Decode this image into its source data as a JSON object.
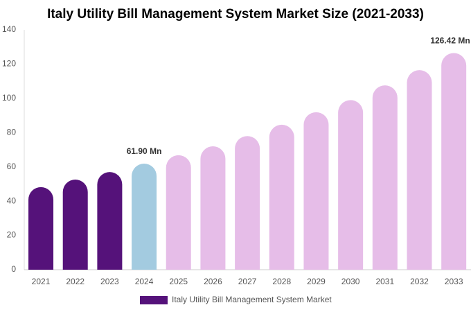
{
  "chart_data": {
    "type": "bar",
    "title": "Italy Utility Bill Management System Market Size (2021-2033)",
    "categories": [
      "2021",
      "2022",
      "2023",
      "2024",
      "2025",
      "2026",
      "2027",
      "2028",
      "2029",
      "2030",
      "2031",
      "2032",
      "2033"
    ],
    "series": [
      {
        "name": "Italy Utility Bill Management System Market",
        "color": "#55127a",
        "values": [
          48.2,
          52.6,
          57,
          61.9,
          66.8,
          72,
          78,
          84.6,
          91.9,
          99,
          107.6,
          116.5,
          126.42
        ],
        "value_labels": [
          null,
          null,
          null,
          "61.90 Mn",
          null,
          null,
          null,
          null,
          null,
          null,
          null,
          null,
          "126.42 Mn"
        ],
        "colors": [
          "#55127a",
          "#55127a",
          "#55127a",
          "#a3cbe0",
          "#e6bde8",
          "#e6bde8",
          "#e6bde8",
          "#e6bde8",
          "#e6bde8",
          "#e6bde8",
          "#e6bde8",
          "#e6bde8",
          "#e6bde8"
        ]
      }
    ],
    "ylim": [
      0,
      140
    ],
    "yticks": [
      0,
      20,
      40,
      60,
      80,
      100,
      120,
      140
    ],
    "grid": false,
    "legend": "bottom"
  }
}
